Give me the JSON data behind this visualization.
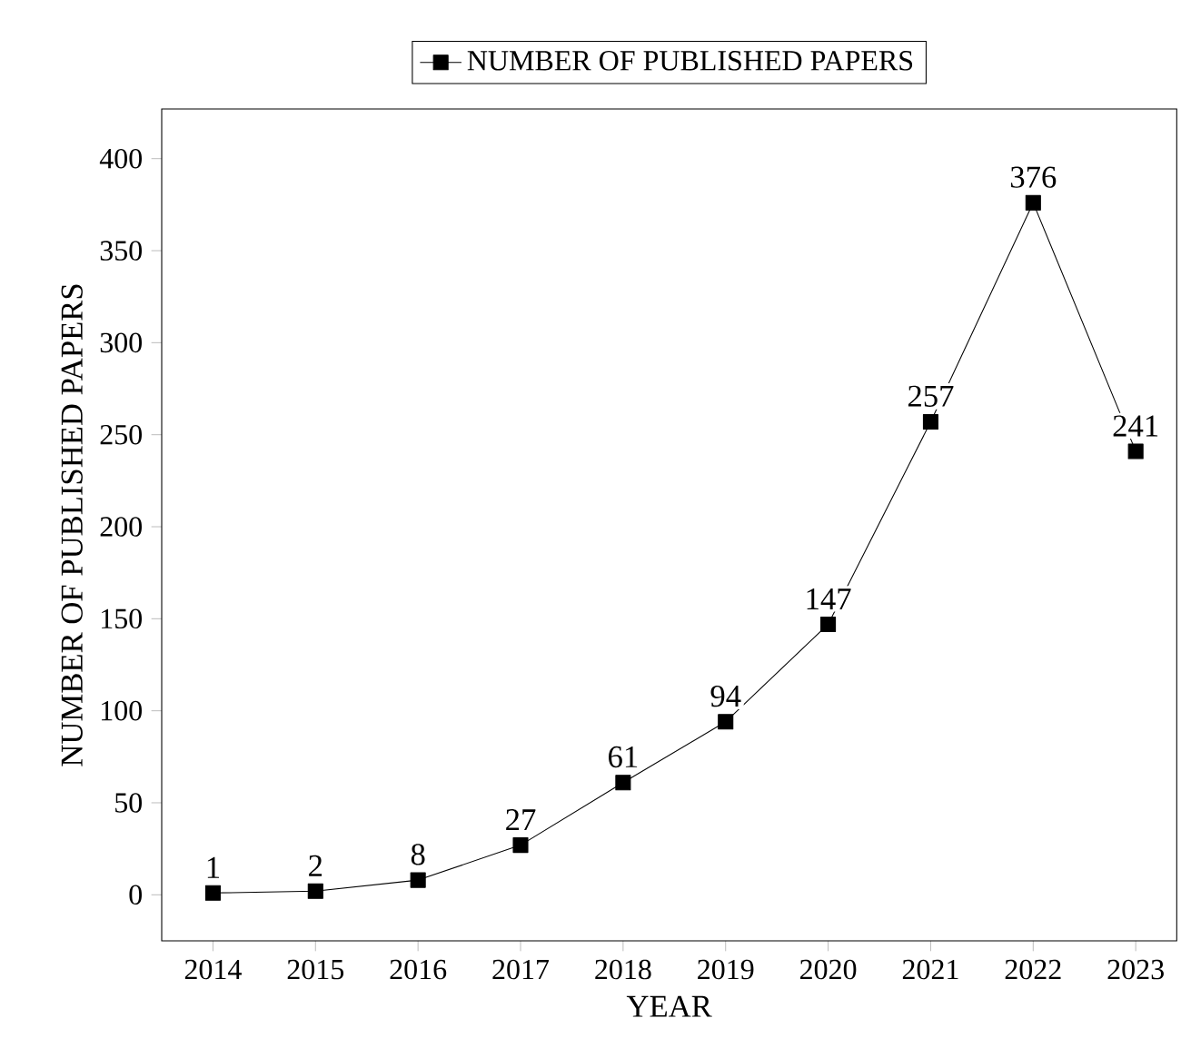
{
  "chart_data": {
    "type": "line",
    "xlabel": "YEAR",
    "ylabel": "NUMBER OF PUBLISHED PAPERS",
    "x": [
      2014,
      2015,
      2016,
      2017,
      2018,
      2019,
      2020,
      2021,
      2022,
      2023
    ],
    "series": [
      {
        "name": "NUMBER OF PUBLISHED PAPERS",
        "color": "#000000",
        "values": [
          1,
          2,
          8,
          27,
          61,
          94,
          147,
          257,
          376,
          241
        ]
      }
    ],
    "xlim": [
      2013.5,
      2023.4
    ],
    "ylim": [
      -25,
      427
    ],
    "xticks": [
      2014,
      2015,
      2016,
      2017,
      2018,
      2019,
      2020,
      2021,
      2022,
      2023
    ],
    "yticks": [
      0,
      50,
      100,
      150,
      200,
      250,
      300,
      350,
      400
    ],
    "data_labels": true,
    "legend": "top",
    "marker": "square",
    "line_style": "solid",
    "grid": false
  }
}
